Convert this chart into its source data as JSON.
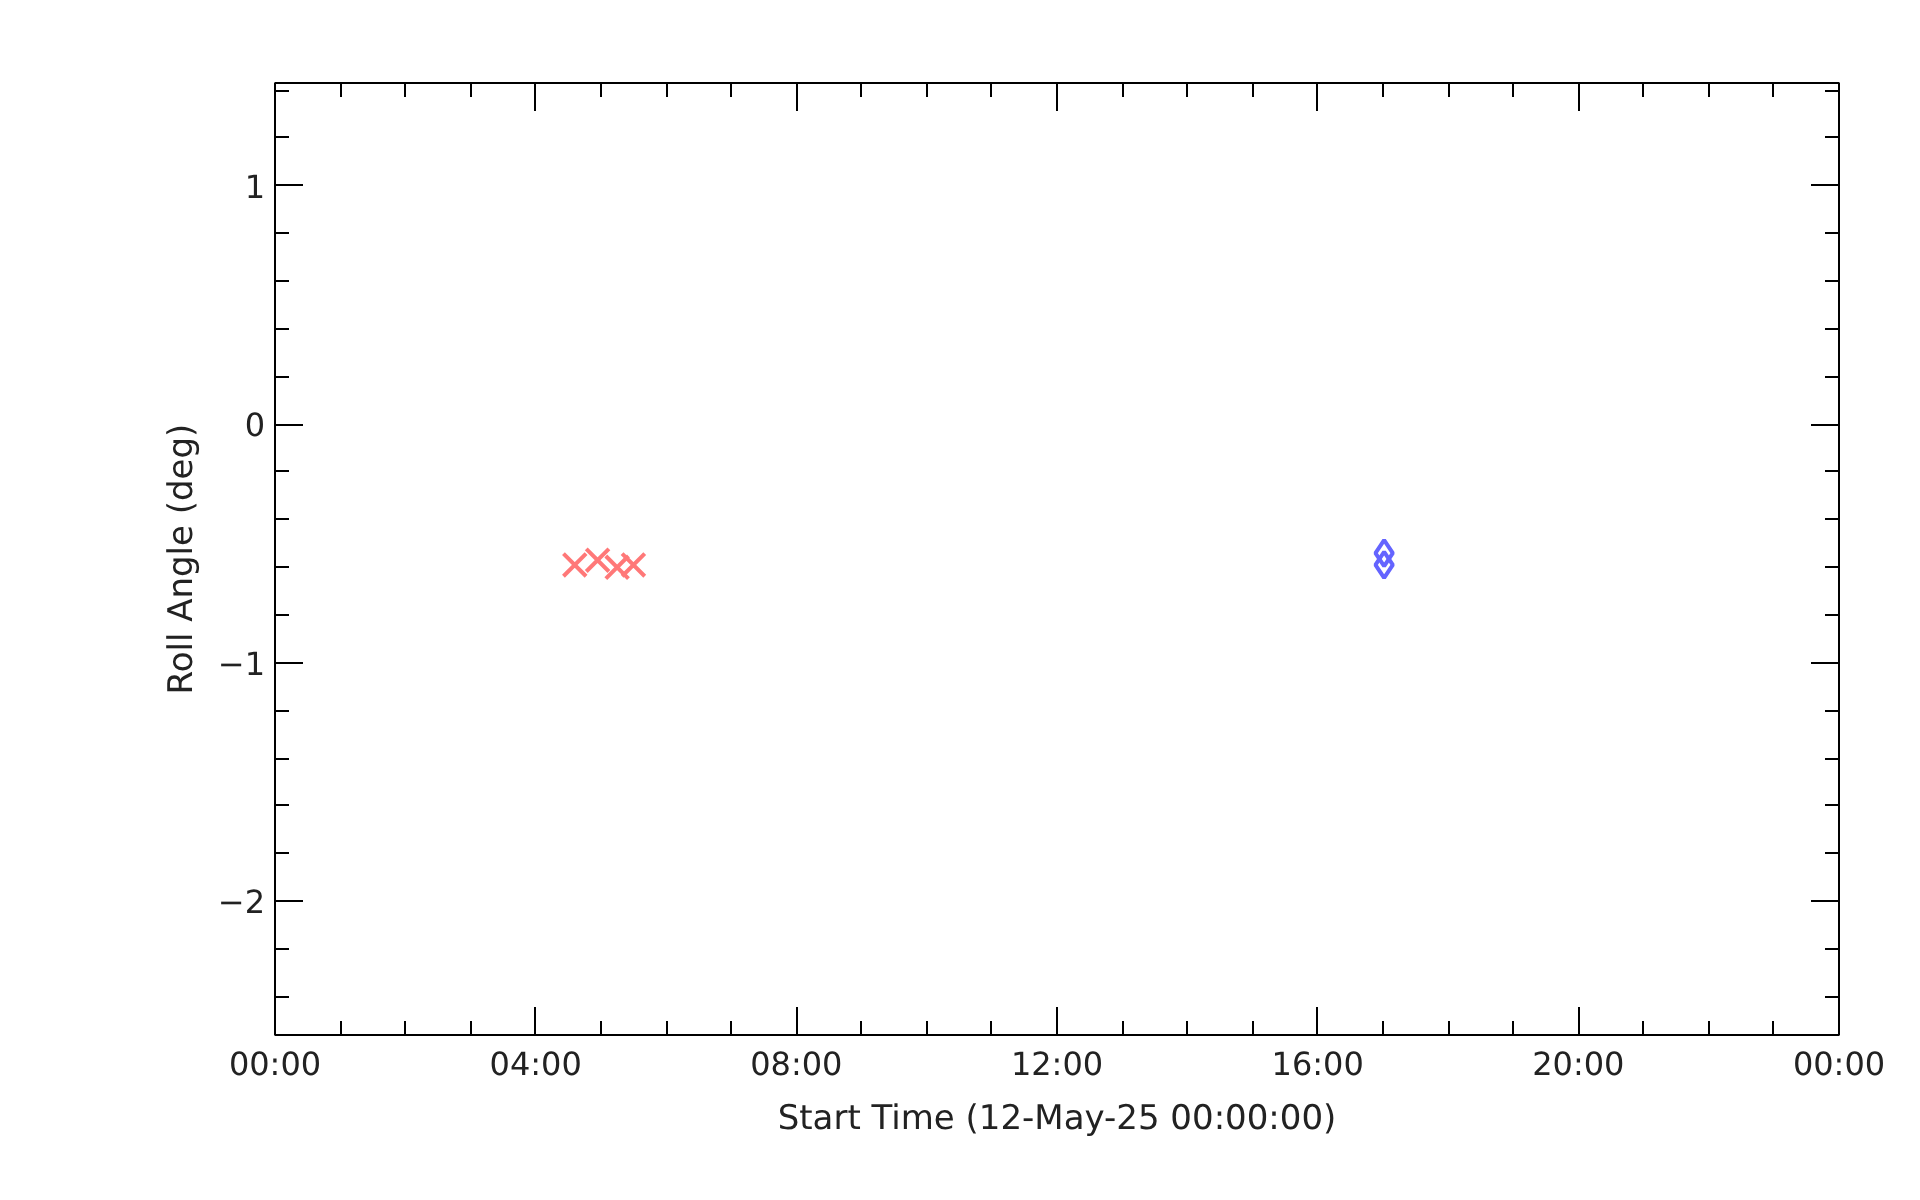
{
  "chart_data": {
    "type": "scatter",
    "xlabel": "Start Time (12-May-25 00:00:00)",
    "ylabel": "Roll Angle (deg)",
    "xlim": [
      0,
      24
    ],
    "ylim": [
      -2.56,
      1.43
    ],
    "xticks": [
      {
        "value": 0,
        "label": "00:00"
      },
      {
        "value": 4,
        "label": "04:00"
      },
      {
        "value": 8,
        "label": "08:00"
      },
      {
        "value": 12,
        "label": "12:00"
      },
      {
        "value": 16,
        "label": "16:00"
      },
      {
        "value": 20,
        "label": "20:00"
      },
      {
        "value": 24,
        "label": "00:00"
      }
    ],
    "yticks": [
      -2,
      -1,
      0,
      1
    ],
    "grid": false,
    "series": [
      {
        "color": "#ff7878",
        "marker": "cross",
        "x": [
          4.6,
          4.95,
          5.25,
          5.5
        ],
        "values": [
          -0.59,
          -0.57,
          -0.6,
          -0.59
        ]
      },
      {
        "color": "#6464ff",
        "marker": "diamond",
        "x": [
          17.02,
          17.02
        ],
        "values": [
          -0.54,
          -0.59
        ]
      }
    ]
  }
}
